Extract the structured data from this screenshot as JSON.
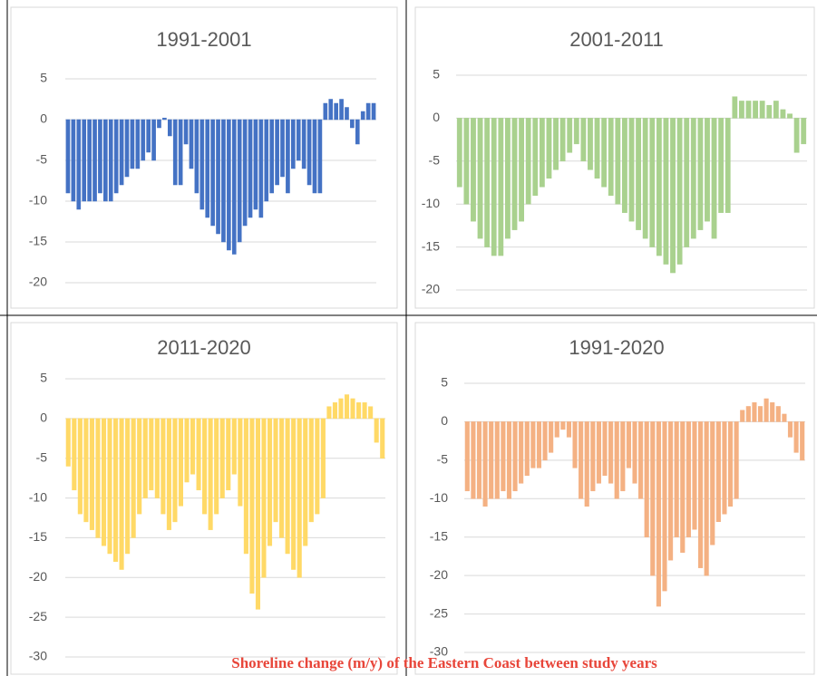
{
  "chart_data": [
    {
      "type": "bar",
      "title": "1991-2001",
      "color": "#4472c4",
      "ylim": [
        -20,
        5
      ],
      "yticks": [
        5,
        0,
        -5,
        -10,
        -15,
        -20
      ],
      "grid": true,
      "values": [
        -9,
        -10,
        -11,
        -10,
        -10,
        -10,
        -9,
        -10,
        -10,
        -9,
        -8,
        -7,
        -6,
        -6,
        -5,
        -4,
        -5,
        -1,
        0.2,
        -2,
        -8,
        -8,
        -3,
        -6,
        -9,
        -11,
        -12,
        -13,
        -14,
        -15,
        -16,
        -16.5,
        -15,
        -13,
        -12,
        -11,
        -12,
        -10,
        -9,
        -8,
        -7,
        -9,
        -6,
        -5,
        -6,
        -8,
        -9,
        -9,
        2,
        2.5,
        2,
        2.5,
        1.5,
        -1,
        -3,
        1,
        2,
        2
      ]
    },
    {
      "type": "bar",
      "title": "2001-2011",
      "color": "#a9d18e",
      "ylim": [
        -20,
        5
      ],
      "yticks": [
        5,
        0,
        -5,
        -10,
        -15,
        -20
      ],
      "grid": true,
      "values": [
        -8,
        -10,
        -12,
        -14,
        -15,
        -16,
        -16,
        -14,
        -13,
        -12,
        -10,
        -9,
        -8,
        -7,
        -6,
        -5,
        -4,
        -3,
        -5,
        -6,
        -7,
        -8,
        -9,
        -10,
        -11,
        -12,
        -13,
        -14,
        -15,
        -16,
        -17,
        -18,
        -17,
        -15,
        -14,
        -13,
        -12,
        -14,
        -11,
        -11,
        2.5,
        2,
        2,
        2,
        2,
        1.5,
        2,
        1,
        0.5,
        -4,
        -3
      ]
    },
    {
      "type": "bar",
      "title": "2011-2020",
      "color": "#ffd966",
      "ylim": [
        -30,
        5
      ],
      "yticks": [
        5,
        0,
        -5,
        -10,
        -15,
        -20,
        -25,
        -30
      ],
      "grid": true,
      "values": [
        -6,
        -9,
        -12,
        -13,
        -14,
        -15,
        -16,
        -17,
        -18,
        -19,
        -17,
        -15,
        -12,
        -10,
        -9,
        -10,
        -12,
        -14,
        -13,
        -11,
        -8,
        -7,
        -9,
        -12,
        -14,
        -12,
        -10,
        -9,
        -7,
        -11,
        -17,
        -22,
        -24,
        -20,
        -16,
        -13,
        -15,
        -17,
        -19,
        -20,
        -16,
        -13,
        -12,
        -10,
        1.5,
        2,
        2.5,
        3,
        2.5,
        2,
        2,
        1.5,
        -3,
        -5
      ]
    },
    {
      "type": "bar",
      "title": "1991-2020",
      "color": "#f4b183",
      "ylim": [
        -30,
        5
      ],
      "yticks": [
        5,
        0,
        -5,
        -10,
        -15,
        -20,
        -25,
        -30
      ],
      "grid": true,
      "values": [
        -9,
        -10,
        -10,
        -11,
        -10,
        -10,
        -9,
        -10,
        -9,
        -8,
        -7,
        -6,
        -6,
        -5,
        -4,
        -2,
        -1,
        -2,
        -6,
        -10,
        -11,
        -9,
        -8,
        -7,
        -8,
        -10,
        -9,
        -6,
        -8,
        -10,
        -15,
        -20,
        -24,
        -22,
        -18,
        -15,
        -17,
        -15,
        -14,
        -19,
        -20,
        -16,
        -13,
        -12,
        -11,
        -10,
        1.5,
        2,
        2.5,
        2,
        3,
        2.5,
        2,
        1,
        -2,
        -4,
        -5
      ]
    }
  ],
  "caption": "Shoreline change (m/y) of the Eastern Coast between study years"
}
